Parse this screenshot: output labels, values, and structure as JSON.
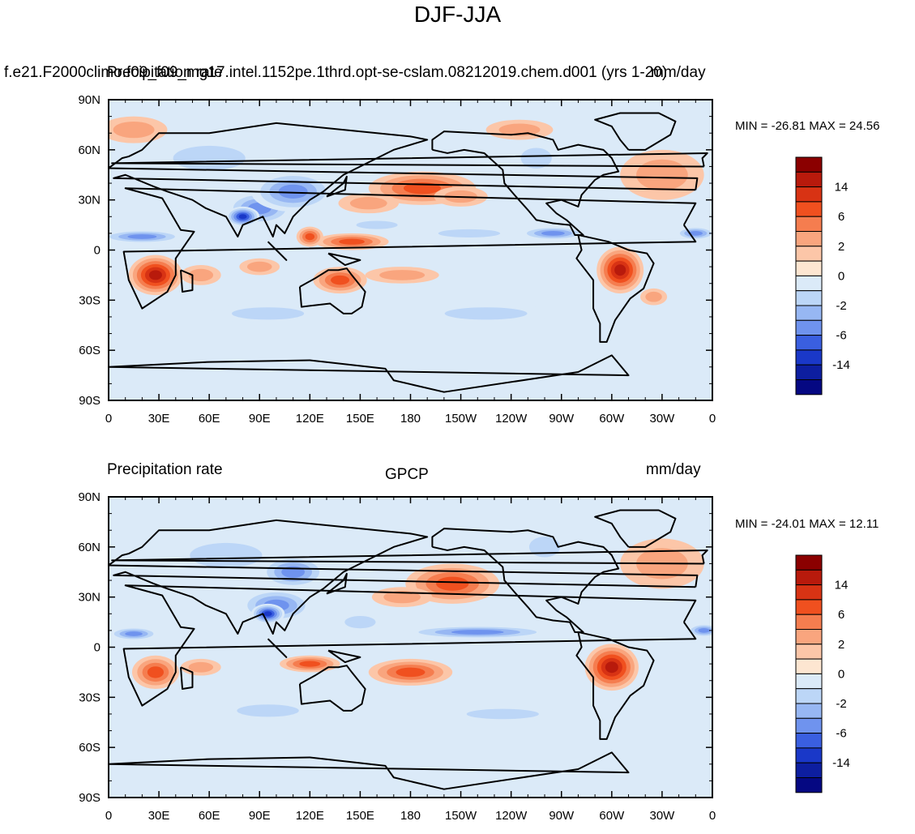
{
  "title": "DJF-JJA",
  "chart_data": [
    {
      "type": "heatmap",
      "left_label": "f.e21.F2000climo.f09_f09_mg17.intel.1152pe.1thrd.opt-se-cslam.08212019.chem.d001 (yrs 1-20)",
      "center_label": "Precipitation rate",
      "right_label": "mm/day",
      "min_max_text": "MIN = -26.81 MAX =  24.56",
      "min": -26.81,
      "max": 24.56,
      "x_tick_labels": [
        "0",
        "30E",
        "60E",
        "90E",
        "120E",
        "150E",
        "180",
        "150W",
        "120W",
        "90W",
        "60W",
        "30W",
        "0"
      ],
      "y_tick_labels": [
        "90N",
        "60N",
        "30N",
        "0",
        "30S",
        "60S",
        "90S"
      ],
      "x_range": [
        0,
        360
      ],
      "y_range": [
        -90,
        90
      ],
      "field_blobs": [
        {
          "lon": 187,
          "lat": 37,
          "rlon": 32,
          "rlat": 10,
          "v": 6
        },
        {
          "lon": 155,
          "lat": 28,
          "rlon": 18,
          "rlat": 6,
          "v": 2
        },
        {
          "lon": 210,
          "lat": 32,
          "rlon": 16,
          "rlat": 6,
          "v": 2
        },
        {
          "lon": 145,
          "lat": 5,
          "rlon": 22,
          "rlat": 5,
          "v": 6
        },
        {
          "lon": 120,
          "lat": 8,
          "rlon": 8,
          "rlat": 6,
          "v": 6
        },
        {
          "lon": 28,
          "lat": -15,
          "rlon": 16,
          "rlat": 12,
          "v": 14
        },
        {
          "lon": 55,
          "lat": -15,
          "rlon": 12,
          "rlat": 6,
          "v": 2
        },
        {
          "lon": 90,
          "lat": -10,
          "rlon": 12,
          "rlat": 5,
          "v": 2
        },
        {
          "lon": 138,
          "lat": -18,
          "rlon": 16,
          "rlat": 8,
          "v": 6
        },
        {
          "lon": 175,
          "lat": -15,
          "rlon": 22,
          "rlat": 5,
          "v": 2
        },
        {
          "lon": 305,
          "lat": -12,
          "rlon": 14,
          "rlat": 14,
          "v": 14
        },
        {
          "lon": 325,
          "lat": -28,
          "rlon": 8,
          "rlat": 5,
          "v": 2
        },
        {
          "lon": 330,
          "lat": 45,
          "rlon": 25,
          "rlat": 15,
          "v": 2
        },
        {
          "lon": 15,
          "lat": 72,
          "rlon": 20,
          "rlat": 8,
          "v": 2
        },
        {
          "lon": 245,
          "lat": 72,
          "rlon": 20,
          "rlat": 6,
          "v": 2
        },
        {
          "lon": 90,
          "lat": 25,
          "rlon": 20,
          "rlat": 10,
          "v": -6
        },
        {
          "lon": 110,
          "lat": 35,
          "rlon": 25,
          "rlat": 12,
          "v": -6
        },
        {
          "lon": 80,
          "lat": 20,
          "rlon": 10,
          "rlat": 6,
          "v": -14
        },
        {
          "lon": 20,
          "lat": 8,
          "rlon": 25,
          "rlat": 4,
          "v": -6
        },
        {
          "lon": 350,
          "lat": 10,
          "rlon": 12,
          "rlat": 4,
          "v": -6
        },
        {
          "lon": 265,
          "lat": 10,
          "rlon": 20,
          "rlat": 4,
          "v": -6
        },
        {
          "lon": 215,
          "lat": 10,
          "rlon": 30,
          "rlat": 4,
          "v": -2
        },
        {
          "lon": 160,
          "lat": 15,
          "rlon": 20,
          "rlat": 4,
          "v": -2
        },
        {
          "lon": 95,
          "lat": -38,
          "rlon": 35,
          "rlat": 6,
          "v": -2
        },
        {
          "lon": 225,
          "lat": -38,
          "rlon": 40,
          "rlat": 6,
          "v": -2
        },
        {
          "lon": 60,
          "lat": 55,
          "rlon": 35,
          "rlat": 12,
          "v": -2
        },
        {
          "lon": 255,
          "lat": 55,
          "rlon": 15,
          "rlat": 10,
          "v": -2
        }
      ],
      "colorbar_labels": [
        "14",
        "6",
        "2",
        "0",
        "-2",
        "-6",
        "-14"
      ]
    },
    {
      "type": "heatmap",
      "left_label": "Precipitation rate",
      "center_label": "GPCP",
      "right_label": "mm/day",
      "min_max_text": "MIN = -24.01 MAX =  12.11",
      "min": -24.01,
      "max": 12.11,
      "x_tick_labels": [
        "0",
        "30E",
        "60E",
        "90E",
        "120E",
        "150E",
        "180",
        "150W",
        "120W",
        "90W",
        "60W",
        "30W",
        "0"
      ],
      "y_tick_labels": [
        "90N",
        "60N",
        "30N",
        "0",
        "30S",
        "60S",
        "90S"
      ],
      "x_range": [
        0,
        360
      ],
      "y_range": [
        -90,
        90
      ],
      "field_blobs": [
        {
          "lon": 205,
          "lat": 38,
          "rlon": 28,
          "rlat": 12,
          "v": 6
        },
        {
          "lon": 175,
          "lat": 30,
          "rlon": 18,
          "rlat": 6,
          "v": 2
        },
        {
          "lon": 120,
          "lat": -10,
          "rlon": 18,
          "rlat": 5,
          "v": 6
        },
        {
          "lon": 180,
          "lat": -15,
          "rlon": 25,
          "rlat": 8,
          "v": 6
        },
        {
          "lon": 28,
          "lat": -15,
          "rlon": 14,
          "rlat": 10,
          "v": 6
        },
        {
          "lon": 55,
          "lat": -12,
          "rlon": 12,
          "rlat": 5,
          "v": 2
        },
        {
          "lon": 300,
          "lat": -12,
          "rlon": 16,
          "rlat": 14,
          "v": 14
        },
        {
          "lon": 330,
          "lat": 50,
          "rlon": 25,
          "rlat": 15,
          "v": 2
        },
        {
          "lon": 100,
          "lat": 25,
          "rlon": 22,
          "rlat": 10,
          "v": -6
        },
        {
          "lon": 95,
          "lat": 20,
          "rlon": 10,
          "rlat": 6,
          "v": -14
        },
        {
          "lon": 15,
          "lat": 8,
          "rlon": 15,
          "rlat": 4,
          "v": -6
        },
        {
          "lon": 355,
          "lat": 10,
          "rlon": 10,
          "rlat": 4,
          "v": -6
        },
        {
          "lon": 220,
          "lat": 9,
          "rlon": 45,
          "rlat": 4,
          "v": -6
        },
        {
          "lon": 150,
          "lat": 15,
          "rlon": 15,
          "rlat": 6,
          "v": -2
        },
        {
          "lon": 70,
          "lat": 55,
          "rlon": 35,
          "rlat": 12,
          "v": -2
        },
        {
          "lon": 110,
          "lat": 45,
          "rlon": 20,
          "rlat": 10,
          "v": -6
        },
        {
          "lon": 260,
          "lat": 60,
          "rlon": 15,
          "rlat": 10,
          "v": -2
        },
        {
          "lon": 95,
          "lat": -38,
          "rlon": 30,
          "rlat": 6,
          "v": -2
        },
        {
          "lon": 235,
          "lat": -40,
          "rlon": 35,
          "rlat": 5,
          "v": -2
        }
      ],
      "colorbar_labels": [
        "14",
        "6",
        "2",
        "0",
        "-2",
        "-6",
        "-14"
      ]
    }
  ],
  "colorbar_colors": [
    "#8b0000",
    "#b81a0c",
    "#d83314",
    "#f0501f",
    "#f57d4f",
    "#f9a57e",
    "#fcc6a8",
    "#fde6d1",
    "#dbeaf8",
    "#bcd6f7",
    "#97b7f3",
    "#6f93ee",
    "#3a5fe0",
    "#1a38c8",
    "#0d1ea0",
    "#050882"
  ]
}
